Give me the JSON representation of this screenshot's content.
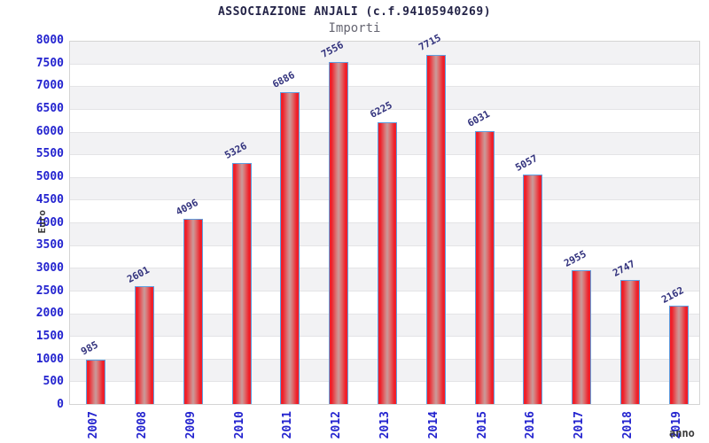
{
  "header": {
    "title": "ASSOCIAZIONE ANJALI (c.f.94105940269)",
    "subtitle": "Importi"
  },
  "axes": {
    "y_title": "Euro",
    "x_title": "anno"
  },
  "chart_data": {
    "type": "bar",
    "title": "ASSOCIAZIONE ANJALI (c.f.94105940269)",
    "subtitle": "Importi",
    "xlabel": "anno",
    "ylabel": "Euro",
    "categories": [
      "2007",
      "2008",
      "2009",
      "2010",
      "2011",
      "2012",
      "2013",
      "2014",
      "2015",
      "2016",
      "2017",
      "2018",
      "2019"
    ],
    "values": [
      985,
      2601,
      4096,
      5326,
      6886,
      7556,
      6225,
      7715,
      6031,
      5057,
      2955,
      2747,
      2162
    ],
    "ylim": [
      0,
      8000
    ],
    "ytick_step": 500,
    "legend_position": "none",
    "grid": "horizontal-alternating-bands",
    "bar_value_labels_rotated": true,
    "colors": {
      "bar_edge": "#ef1e28",
      "bar_center": "#c99b9b",
      "bar_border": "#5e9fe0",
      "axis_tick_text": "#2323cf",
      "value_label_text": "#32327d",
      "title_text": "#232347",
      "subtitle_text": "#666672",
      "band_gray": "#f2f2f4",
      "band_white": "#ffffff",
      "gridline": "#e4e4e6",
      "plot_border": "#d4d4d4"
    }
  }
}
